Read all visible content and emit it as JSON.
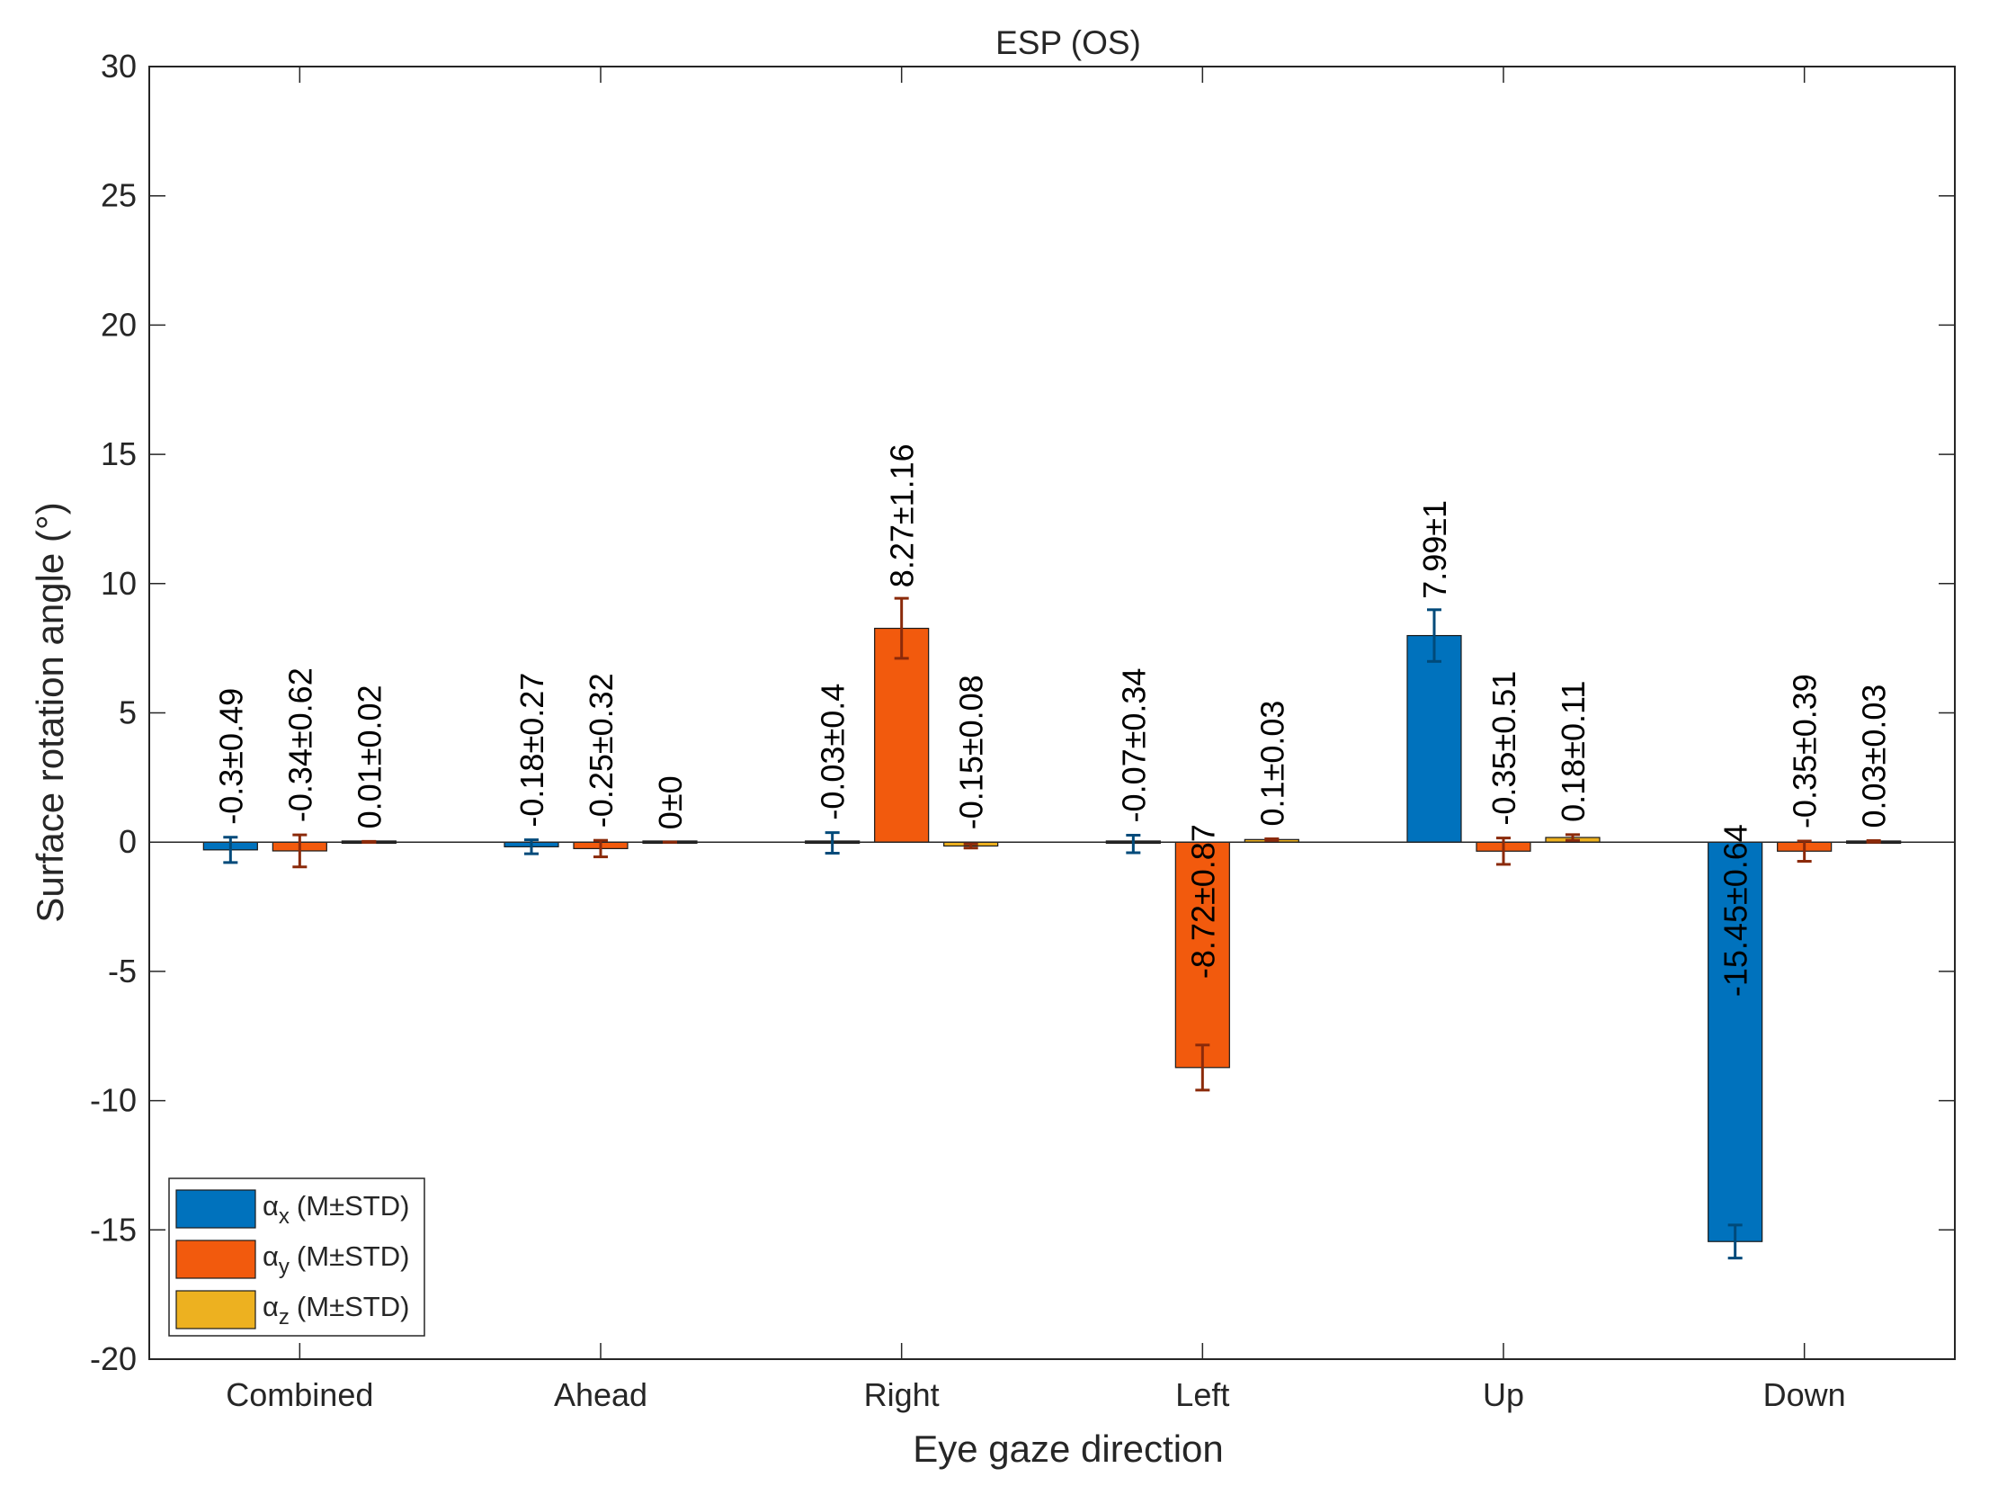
{
  "chart_data": {
    "type": "bar",
    "title": "ESP (OS)",
    "xlabel": "Eye gaze direction",
    "ylabel": "Surface rotation angle (°)",
    "ylim": [
      -20,
      30
    ],
    "yticks": [
      "30",
      "25",
      "20",
      "15",
      "10",
      "5",
      "0",
      "-5",
      "-10",
      "-15",
      "-20"
    ],
    "categories": [
      "Combined",
      "Ahead",
      "Right",
      "Left",
      "Up",
      "Down"
    ],
    "legend_position": "bottom-left",
    "grid": false,
    "series": [
      {
        "name": "αx (M±STD)",
        "symbol": "α",
        "subscript": "x",
        "suffix": "(M±STD)",
        "color": "#0072bd",
        "error_color": "#004a7a",
        "values": [
          -0.3,
          -0.18,
          -0.03,
          -0.07,
          7.99,
          -15.45
        ],
        "errors": [
          0.49,
          0.27,
          0.4,
          0.34,
          1,
          0.64
        ],
        "labels": [
          "-0.3±0.49",
          "-0.18±0.27",
          "-0.03±0.4",
          "-0.07±0.34",
          "7.99±1",
          "-15.45±0.64"
        ]
      },
      {
        "name": "αy (M±STD)",
        "symbol": "α",
        "subscript": "y",
        "suffix": "(M±STD)",
        "color": "#f25a0d",
        "error_color": "#8b2a0a",
        "values": [
          -0.34,
          -0.25,
          8.27,
          -8.72,
          -0.35,
          -0.35
        ],
        "errors": [
          0.62,
          0.32,
          1.16,
          0.87,
          0.51,
          0.39
        ],
        "labels": [
          "-0.34±0.62",
          "-0.25±0.32",
          "8.27±1.16",
          "-8.72±0.87",
          "-0.35±0.51",
          "-0.35±0.39"
        ]
      },
      {
        "name": "αz (M±STD)",
        "symbol": "α",
        "subscript": "z",
        "suffix": "(M±STD)",
        "color": "#edb120",
        "error_color": "#8b2a0a",
        "values": [
          0.01,
          0,
          -0.15,
          0.1,
          0.18,
          0.03
        ],
        "errors": [
          0.02,
          0,
          0.08,
          0.03,
          0.11,
          0.03
        ],
        "labels": [
          "0.01±0.02",
          "0±0",
          "-0.15±0.08",
          "0.1±0.03",
          "0.18±0.11",
          "0.03±0.03"
        ]
      }
    ]
  }
}
